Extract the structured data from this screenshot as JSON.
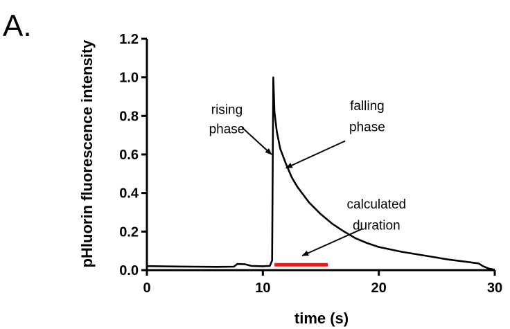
{
  "panel_label": "A.",
  "chart_data": {
    "type": "line",
    "xlabel": "time (s)",
    "ylabel": "pHluorin fluorescence intensity",
    "xlim": [
      0,
      30
    ],
    "ylim": [
      0,
      1.2
    ],
    "x_ticks": [
      "0",
      "10",
      "20",
      "30"
    ],
    "y_ticks": [
      "0.0",
      "0.2",
      "0.4",
      "0.6",
      "0.8",
      "1.0",
      "1.2"
    ],
    "grid": false,
    "series": [
      {
        "color": "#000000",
        "points": [
          [
            0,
            0.021
          ],
          [
            2,
            0.019
          ],
          [
            4,
            0.018
          ],
          [
            6,
            0.017
          ],
          [
            7.5,
            0.018
          ],
          [
            7.8,
            0.032
          ],
          [
            8.5,
            0.03
          ],
          [
            9,
            0.022
          ],
          [
            10,
            0.02
          ],
          [
            10.6,
            0.022
          ],
          [
            10.8,
            0.05
          ],
          [
            10.9,
            1.0
          ],
          [
            11.0,
            0.82
          ],
          [
            11.2,
            0.72
          ],
          [
            11.5,
            0.63
          ],
          [
            12,
            0.55
          ],
          [
            12.5,
            0.48
          ],
          [
            13,
            0.43
          ],
          [
            14,
            0.35
          ],
          [
            15,
            0.29
          ],
          [
            16,
            0.24
          ],
          [
            17,
            0.2
          ],
          [
            18,
            0.165
          ],
          [
            19,
            0.14
          ],
          [
            20,
            0.12
          ],
          [
            22,
            0.095
          ],
          [
            24,
            0.075
          ],
          [
            26,
            0.055
          ],
          [
            28,
            0.04
          ],
          [
            28.6,
            0.035
          ],
          [
            29,
            0.02
          ],
          [
            29.5,
            0.008
          ],
          [
            30,
            0.002
          ]
        ]
      }
    ],
    "duration_bar": {
      "x_start": 11.0,
      "x_end": 15.6,
      "y": 0.028,
      "color": "#e41a1c"
    },
    "annotations": [
      {
        "lines": [
          "rising",
          "phase"
        ],
        "text_x": 6.9,
        "text_y": [
          0.81,
          0.71
        ],
        "arrow_from": [
          8.2,
          0.74
        ],
        "arrow_to": [
          10.75,
          0.6
        ]
      },
      {
        "lines": [
          "falling",
          "phase"
        ],
        "text_x": 19.0,
        "text_y": [
          0.83,
          0.72
        ],
        "arrow_from": [
          17.1,
          0.67
        ],
        "arrow_to": [
          12.0,
          0.53
        ]
      },
      {
        "lines": [
          "calculated",
          "duration"
        ],
        "text_x": 19.8,
        "text_y": [
          0.32,
          0.21
        ],
        "arrow_from": [
          18.6,
          0.215
        ],
        "arrow_to": [
          13.4,
          0.075
        ]
      }
    ]
  }
}
